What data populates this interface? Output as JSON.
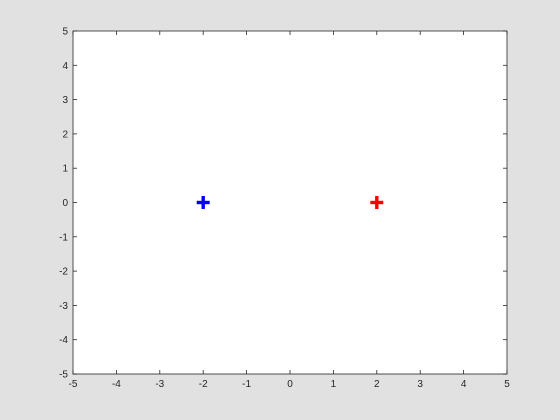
{
  "chart_data": {
    "type": "scatter",
    "title": "",
    "xlabel": "",
    "ylabel": "",
    "xlim": [
      -5,
      5
    ],
    "ylim": [
      -5,
      5
    ],
    "xticks": [
      -5,
      -4,
      -3,
      -2,
      -1,
      0,
      1,
      2,
      3,
      4,
      5
    ],
    "yticks": [
      -5,
      -4,
      -3,
      -2,
      -1,
      0,
      1,
      2,
      3,
      4,
      5
    ],
    "grid": false,
    "series": [
      {
        "marker": "plus",
        "color": "#0000ff",
        "points": [
          {
            "x": -2,
            "y": 0
          }
        ]
      },
      {
        "marker": "plus",
        "color": "#ff0000",
        "points": [
          {
            "x": 2,
            "y": 0
          }
        ]
      }
    ]
  }
}
